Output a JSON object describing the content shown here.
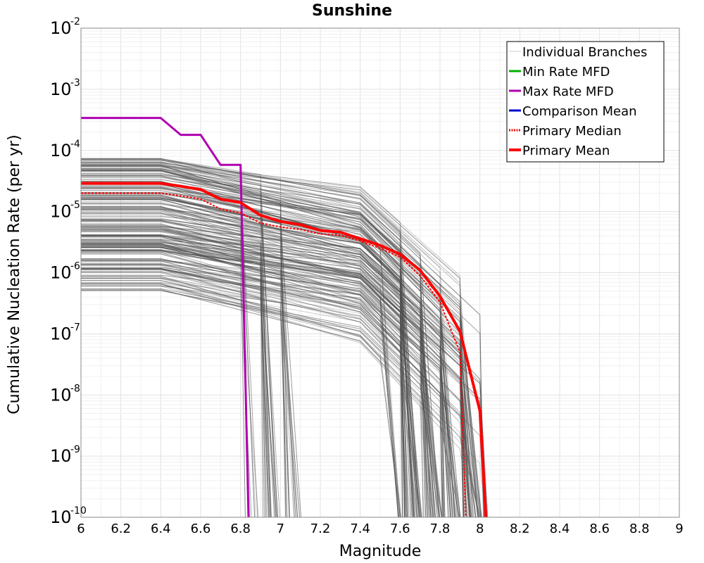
{
  "chart_data": {
    "type": "line",
    "title": "Sunshine",
    "xlabel": "Magnitude",
    "ylabel": "Cumulative Nucleation Rate (per yr)",
    "xlim": [
      6,
      9
    ],
    "ylim": [
      1e-10,
      0.01
    ],
    "yscale": "log",
    "grid": true,
    "legend_position": "top-right",
    "x_ticks": [
      "6",
      "6.2",
      "6.4",
      "6.6",
      "6.8",
      "7",
      "7.2",
      "7.4",
      "7.6",
      "7.8",
      "8",
      "8.2",
      "8.4",
      "8.6",
      "8.8",
      "9"
    ],
    "y_ticks": [
      {
        "base": "10",
        "exp": "-10"
      },
      {
        "base": "10",
        "exp": "-9"
      },
      {
        "base": "10",
        "exp": "-8"
      },
      {
        "base": "10",
        "exp": "-7"
      },
      {
        "base": "10",
        "exp": "-6"
      },
      {
        "base": "10",
        "exp": "-5"
      },
      {
        "base": "10",
        "exp": "-4"
      },
      {
        "base": "10",
        "exp": "-3"
      },
      {
        "base": "10",
        "exp": "-2"
      }
    ],
    "legend": [
      {
        "label": "Individual Branches",
        "color": "#cccccc",
        "style": "thin"
      },
      {
        "label": "Min Rate MFD",
        "color": "#00b000",
        "style": "solid"
      },
      {
        "label": "Max Rate MFD",
        "color": "#b000b0",
        "style": "solid"
      },
      {
        "label": "Comparison Mean",
        "color": "#0000d0",
        "style": "solid"
      },
      {
        "label": " Primary Median",
        "color": "#ff0000",
        "style": "dotted"
      },
      {
        "label": "Primary Mean",
        "color": "#ff0000",
        "style": "thick"
      }
    ],
    "series": [
      {
        "name": "Max Rate MFD",
        "color": "#b000b0",
        "x": [
          6.0,
          6.4,
          6.5,
          6.6,
          6.7,
          6.8,
          6.84
        ],
        "y": [
          0.00034,
          0.00034,
          0.00018,
          0.00018,
          5.8e-05,
          5.8e-05,
          1e-10
        ]
      },
      {
        "name": "Primary Mean",
        "color": "#ff0000",
        "x": [
          6.0,
          6.4,
          6.5,
          6.6,
          6.7,
          6.8,
          6.9,
          7.0,
          7.1,
          7.2,
          7.3,
          7.4,
          7.5,
          7.6,
          7.7,
          7.8,
          7.9,
          8.0,
          8.03
        ],
        "y": [
          2.9e-05,
          2.9e-05,
          2.6e-05,
          2.3e-05,
          1.6e-05,
          1.4e-05,
          8.7e-06,
          6.9e-06,
          6.1e-06,
          4.9e-06,
          4.6e-06,
          3.6e-06,
          2.8e-06,
          2e-06,
          1.1e-06,
          4.1e-07,
          1.1e-07,
          5.5e-09,
          1e-10
        ]
      },
      {
        "name": "Primary Median",
        "color": "#ff0000",
        "x": [
          6.0,
          6.4,
          6.5,
          6.6,
          6.7,
          6.8,
          6.9,
          7.0,
          7.1,
          7.2,
          7.3,
          7.4,
          7.5,
          7.6,
          7.7,
          7.8,
          7.9,
          7.93
        ],
        "y": [
          2e-05,
          2e-05,
          1.8e-05,
          1.6e-05,
          1.1e-05,
          9.5e-06,
          6.5e-06,
          5.6e-06,
          5.1e-06,
          4.3e-06,
          4.1e-06,
          3.3e-06,
          2.5e-06,
          1.8e-06,
          8.9e-07,
          3.3e-07,
          5e-08,
          1e-10
        ]
      }
    ]
  }
}
